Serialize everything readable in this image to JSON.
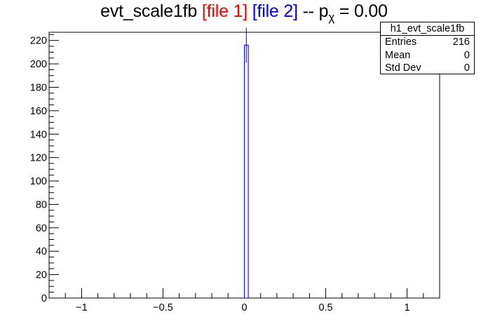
{
  "title": {
    "main": "evt_scale1fb",
    "file1": "[file 1]",
    "file2": "[file 2]",
    "sep": "--",
    "p": "p",
    "sub": "χ",
    "tail": "= 0.00",
    "colors": {
      "file1": "#ff0000",
      "file2": "#0000ff"
    }
  },
  "stats": {
    "name": "h1_evt_scale1fb",
    "rows": [
      {
        "label": "Entries",
        "value": "216"
      },
      {
        "label": "Mean",
        "value": "0"
      },
      {
        "label": "Std Dev",
        "value": "0"
      }
    ]
  },
  "chart_data": {
    "type": "bar",
    "xlim": [
      -1.2,
      1.2
    ],
    "ylim": [
      0,
      227
    ],
    "xticks": [
      -1,
      -0.5,
      0,
      0.5,
      1
    ],
    "xtick_labels": [
      "−1",
      "−0.5",
      "0",
      "0.5",
      "1"
    ],
    "yticks": [
      0,
      20,
      40,
      60,
      80,
      100,
      120,
      140,
      160,
      180,
      200,
      220
    ],
    "series": [
      {
        "color": "#ff0000",
        "bins": [
          {
            "x0": 0.0,
            "x1": 0.024,
            "value": 216
          }
        ]
      },
      {
        "color": "#0000ff",
        "bins": [
          {
            "x0": 0.0,
            "x1": 0.024,
            "value": 216,
            "error": 15
          }
        ]
      }
    ],
    "grid": false,
    "legend": "top-right"
  }
}
